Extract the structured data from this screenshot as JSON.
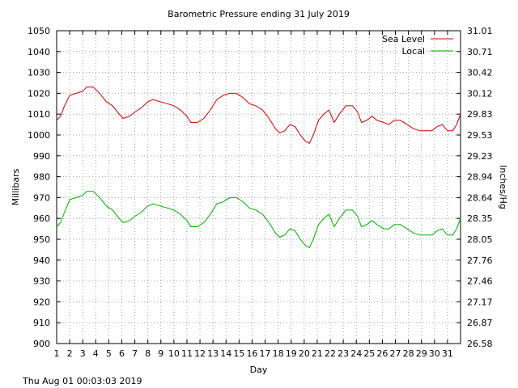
{
  "chart_data": {
    "type": "line",
    "title": "Barometric Pressure ending 31 July 2019",
    "xlabel": "Day",
    "ylabel": "Millibars",
    "y2label": "Inches/Hg",
    "xlim": [
      1,
      32
    ],
    "ylim": [
      900,
      1050
    ],
    "x_ticks": [
      "1",
      "2",
      "3",
      "4",
      "5",
      "6",
      "7",
      "8",
      "9",
      "10",
      "11",
      "12",
      "13",
      "14",
      "15",
      "16",
      "17",
      "18",
      "19",
      "20",
      "21",
      "22",
      "23",
      "24",
      "25",
      "26",
      "27",
      "28",
      "29",
      "30",
      "31"
    ],
    "y_ticks": [
      "900",
      "910",
      "920",
      "930",
      "940",
      "950",
      "960",
      "970",
      "980",
      "990",
      "1000",
      "1010",
      "1020",
      "1030",
      "1040",
      "1050"
    ],
    "y2_ticks": [
      "26.58",
      "26.87",
      "27.17",
      "27.46",
      "27.76",
      "28.05",
      "28.35",
      "28.64",
      "28.94",
      "29.23",
      "29.53",
      "29.83",
      "30.12",
      "30.42",
      "30.71",
      "31.01"
    ],
    "grid": true,
    "legend_position": "top-right",
    "series": [
      {
        "name": "Sea Level",
        "color": "#cc0000",
        "points": [
          [
            1,
            1007
          ],
          [
            1.3,
            1009
          ],
          [
            1.6,
            1014
          ],
          [
            2,
            1019
          ],
          [
            2.5,
            1020
          ],
          [
            3,
            1021
          ],
          [
            3.3,
            1023
          ],
          [
            3.8,
            1023
          ],
          [
            4.3,
            1020
          ],
          [
            4.8,
            1016
          ],
          [
            5.3,
            1014
          ],
          [
            5.8,
            1010
          ],
          [
            6.1,
            1008
          ],
          [
            6.6,
            1009
          ],
          [
            7,
            1011
          ],
          [
            7.5,
            1013
          ],
          [
            8,
            1016
          ],
          [
            8.4,
            1017
          ],
          [
            8.9,
            1016
          ],
          [
            9.5,
            1015
          ],
          [
            10,
            1014
          ],
          [
            10.5,
            1012
          ],
          [
            11,
            1009
          ],
          [
            11.3,
            1006
          ],
          [
            11.8,
            1006
          ],
          [
            12.3,
            1008
          ],
          [
            12.8,
            1012
          ],
          [
            13.3,
            1017
          ],
          [
            13.8,
            1019
          ],
          [
            14.3,
            1020
          ],
          [
            14.8,
            1020
          ],
          [
            15.3,
            1018
          ],
          [
            15.8,
            1015
          ],
          [
            16.3,
            1014
          ],
          [
            16.8,
            1012
          ],
          [
            17.3,
            1008
          ],
          [
            17.8,
            1003
          ],
          [
            18.1,
            1001
          ],
          [
            18.5,
            1002
          ],
          [
            18.9,
            1005
          ],
          [
            19.3,
            1004
          ],
          [
            19.7,
            1000
          ],
          [
            20.1,
            997
          ],
          [
            20.4,
            996
          ],
          [
            20.7,
            1000
          ],
          [
            21.1,
            1007
          ],
          [
            21.5,
            1010
          ],
          [
            21.9,
            1012
          ],
          [
            22.3,
            1006
          ],
          [
            22.7,
            1010
          ],
          [
            23.2,
            1014
          ],
          [
            23.7,
            1014
          ],
          [
            24.1,
            1011
          ],
          [
            24.4,
            1006
          ],
          [
            24.8,
            1007
          ],
          [
            25.2,
            1009
          ],
          [
            25.6,
            1007
          ],
          [
            26.1,
            1006
          ],
          [
            26.5,
            1005
          ],
          [
            26.9,
            1007
          ],
          [
            27.4,
            1007
          ],
          [
            27.9,
            1005
          ],
          [
            28.4,
            1003
          ],
          [
            28.9,
            1002
          ],
          [
            29.4,
            1002
          ],
          [
            29.8,
            1002
          ],
          [
            30.2,
            1004
          ],
          [
            30.6,
            1005
          ],
          [
            31,
            1002
          ],
          [
            31.4,
            1002
          ],
          [
            31.7,
            1005
          ],
          [
            32,
            1010
          ]
        ]
      },
      {
        "name": "Local",
        "color": "#00aa00",
        "points": [
          [
            1,
            956
          ],
          [
            1.3,
            958
          ],
          [
            1.6,
            963
          ],
          [
            2,
            969
          ],
          [
            2.5,
            970
          ],
          [
            3,
            971
          ],
          [
            3.3,
            973
          ],
          [
            3.8,
            973
          ],
          [
            4.3,
            970
          ],
          [
            4.8,
            966
          ],
          [
            5.3,
            964
          ],
          [
            5.8,
            960
          ],
          [
            6.1,
            958
          ],
          [
            6.6,
            959
          ],
          [
            7,
            961
          ],
          [
            7.5,
            963
          ],
          [
            8,
            966
          ],
          [
            8.4,
            967
          ],
          [
            8.9,
            966
          ],
          [
            9.5,
            965
          ],
          [
            10,
            964
          ],
          [
            10.5,
            962
          ],
          [
            11,
            959
          ],
          [
            11.3,
            956
          ],
          [
            11.8,
            956
          ],
          [
            12.3,
            958
          ],
          [
            12.8,
            962
          ],
          [
            13.3,
            967
          ],
          [
            13.8,
            968
          ],
          [
            14.3,
            970
          ],
          [
            14.8,
            970
          ],
          [
            15.3,
            968
          ],
          [
            15.8,
            965
          ],
          [
            16.3,
            964
          ],
          [
            16.8,
            962
          ],
          [
            17.3,
            958
          ],
          [
            17.8,
            953
          ],
          [
            18.1,
            951
          ],
          [
            18.5,
            952
          ],
          [
            18.9,
            955
          ],
          [
            19.3,
            954
          ],
          [
            19.7,
            950
          ],
          [
            20.1,
            947
          ],
          [
            20.4,
            946
          ],
          [
            20.7,
            950
          ],
          [
            21.1,
            957
          ],
          [
            21.5,
            960
          ],
          [
            21.9,
            962
          ],
          [
            22.3,
            956
          ],
          [
            22.7,
            960
          ],
          [
            23.2,
            964
          ],
          [
            23.7,
            964
          ],
          [
            24.1,
            961
          ],
          [
            24.4,
            956
          ],
          [
            24.8,
            957
          ],
          [
            25.2,
            959
          ],
          [
            25.6,
            957
          ],
          [
            26.1,
            955
          ],
          [
            26.5,
            955
          ],
          [
            26.9,
            957
          ],
          [
            27.4,
            957
          ],
          [
            27.9,
            955
          ],
          [
            28.4,
            953
          ],
          [
            28.9,
            952
          ],
          [
            29.4,
            952
          ],
          [
            29.8,
            952
          ],
          [
            30.2,
            954
          ],
          [
            30.6,
            955
          ],
          [
            31,
            952
          ],
          [
            31.4,
            952
          ],
          [
            31.7,
            955
          ],
          [
            32,
            960
          ]
        ]
      }
    ]
  },
  "footer": {
    "timestamp": "Thu Aug 01 00:03:03 2019"
  }
}
